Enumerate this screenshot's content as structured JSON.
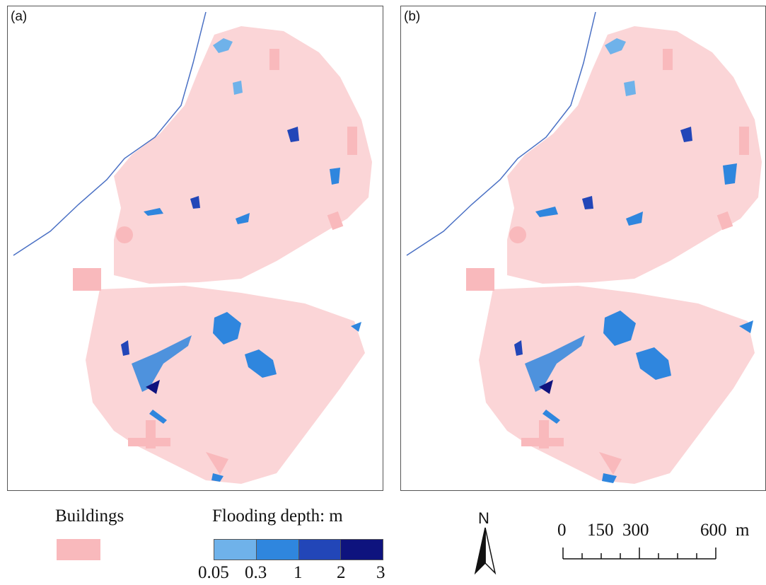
{
  "panels": [
    {
      "label": "(a)"
    },
    {
      "label": "(b)"
    }
  ],
  "legend": {
    "buildings_label": "Buildings",
    "buildings_color": "#f9b9bc",
    "flood_title": "Flooding depth: m",
    "flood_classes": [
      {
        "color": "#6fb2ea"
      },
      {
        "color": "#2f86de"
      },
      {
        "color": "#2246b8"
      },
      {
        "color": "#0e137e"
      }
    ],
    "flood_ticks": [
      "0.05",
      "0.3",
      "1",
      "2",
      "3"
    ]
  },
  "north_arrow": {
    "label": "N"
  },
  "scale_bar": {
    "ticks": [
      "0",
      "150",
      "300",
      "600"
    ],
    "unit": "m"
  },
  "river_color": "#4a70c4"
}
